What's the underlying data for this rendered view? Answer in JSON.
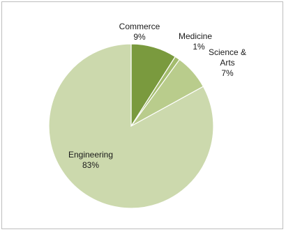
{
  "chart_data": {
    "type": "pie",
    "title": "",
    "slices": [
      {
        "name": "Commerce",
        "value": 9,
        "label": "9%",
        "color": "#7a9a3e"
      },
      {
        "name": "Medicine",
        "value": 1,
        "label": "1%",
        "color": "#a3bc6d"
      },
      {
        "name": "Science & Arts",
        "name_lines": [
          "Science &",
          "Arts"
        ],
        "value": 7,
        "label": "7%",
        "color": "#b9cc8c"
      },
      {
        "name": "Engineering",
        "value": 83,
        "label": "83%",
        "color": "#ccd9ad"
      }
    ],
    "start_angle_deg": 0,
    "direction": "clockwise",
    "legend": "none",
    "slice_border_color": "#ffffff"
  }
}
